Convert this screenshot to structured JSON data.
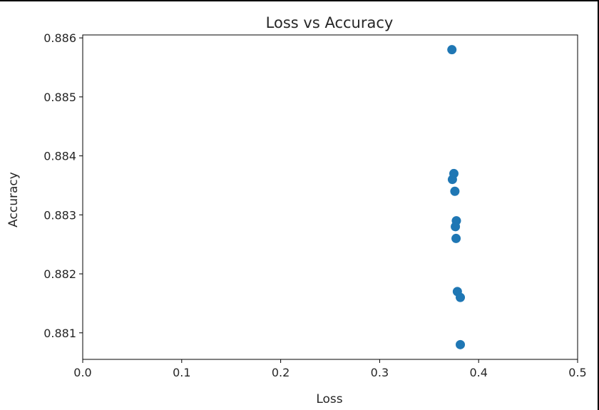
{
  "chart_data": {
    "type": "scatter",
    "title": "Loss vs Accuracy",
    "xlabel": "Loss",
    "ylabel": "Accuracy",
    "xlim": [
      0.0,
      0.5
    ],
    "ylim": [
      0.88055,
      0.88605
    ],
    "xticks": [
      0.0,
      0.1,
      0.2,
      0.3,
      0.4,
      0.5
    ],
    "xtick_labels": [
      "0.0",
      "0.1",
      "0.2",
      "0.3",
      "0.4",
      "0.5"
    ],
    "yticks": [
      0.881,
      0.882,
      0.883,
      0.884,
      0.885,
      0.886
    ],
    "ytick_labels": [
      "0.881",
      "0.882",
      "0.883",
      "0.884",
      "0.885",
      "0.886"
    ],
    "grid": false,
    "legend": "none",
    "marker_color": "#1f77b4",
    "points": [
      {
        "x": 0.373,
        "y": 0.8858
      },
      {
        "x": 0.375,
        "y": 0.8837
      },
      {
        "x": 0.3735,
        "y": 0.8836
      },
      {
        "x": 0.376,
        "y": 0.8834
      },
      {
        "x": 0.3775,
        "y": 0.8829
      },
      {
        "x": 0.3765,
        "y": 0.8828
      },
      {
        "x": 0.3772,
        "y": 0.8826
      },
      {
        "x": 0.3785,
        "y": 0.8817
      },
      {
        "x": 0.3815,
        "y": 0.8816
      },
      {
        "x": 0.3815,
        "y": 0.8808
      }
    ]
  }
}
